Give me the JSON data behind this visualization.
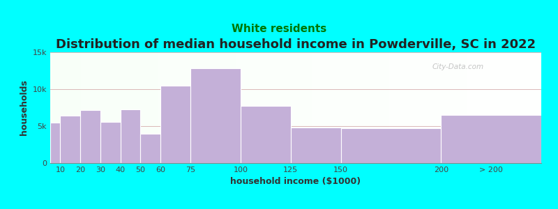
{
  "title": "Distribution of median household income in Powderville, SC in 2022",
  "subtitle": "White residents",
  "xlabel": "household income ($1000)",
  "ylabel": "households",
  "background_color": "#00FFFF",
  "bar_color": "#c4b0d8",
  "categories": [
    "10",
    "20",
    "30",
    "40",
    "50",
    "60",
    "75",
    "100",
    "125",
    "150",
    "200",
    "> 200"
  ],
  "values": [
    5500,
    6400,
    7200,
    5600,
    7300,
    4000,
    10500,
    12800,
    7700,
    4800,
    4700,
    6500
  ],
  "bin_edges": [
    0,
    10,
    20,
    30,
    40,
    50,
    60,
    75,
    100,
    125,
    150,
    200,
    250
  ],
  "tick_positions": [
    10,
    20,
    30,
    40,
    50,
    60,
    75,
    100,
    125,
    150,
    200,
    225
  ],
  "tick_labels": [
    "10",
    "20",
    "30",
    "40",
    "50",
    "60",
    "75",
    "100",
    "125",
    "150",
    "200",
    "> 200"
  ],
  "ylim": [
    0,
    15000
  ],
  "yticks": [
    0,
    5000,
    10000,
    15000
  ],
  "ytick_labels": [
    "0",
    "5k",
    "10k",
    "15k"
  ],
  "title_fontsize": 13,
  "subtitle_fontsize": 11,
  "subtitle_color": "#007700",
  "axis_label_fontsize": 9,
  "tick_fontsize": 8,
  "watermark_text": "City-Data.com",
  "grid_color": "#cc9999",
  "title_color": "#222222"
}
